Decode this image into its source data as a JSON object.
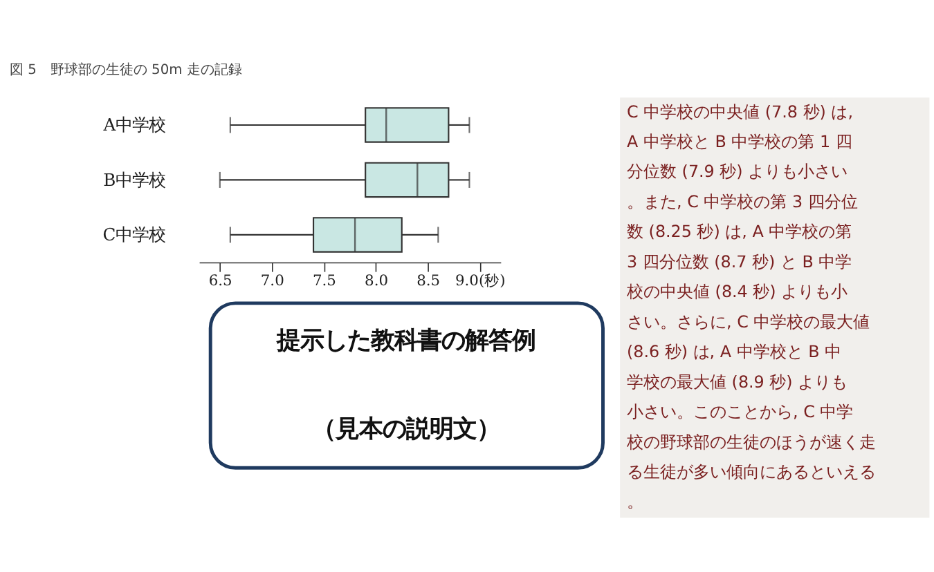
{
  "chart_data": {
    "type": "box",
    "title": "図 5　野球部の生徒の 50m 走の記録",
    "orientation": "horizontal",
    "categories": [
      "A中学校",
      "B中学校",
      "C中学校"
    ],
    "color": "#c9e7e3",
    "boxes": [
      {
        "low": 6.6,
        "q1": 7.9,
        "median": 8.1,
        "q3": 8.7,
        "high": 8.9
      },
      {
        "low": 6.5,
        "q1": 7.9,
        "median": 8.4,
        "q3": 8.7,
        "high": 8.9
      },
      {
        "low": 6.6,
        "q1": 7.4,
        "median": 7.8,
        "q3": 8.25,
        "high": 8.6
      }
    ],
    "xlim": [
      6.3,
      9.2
    ],
    "xticks": [
      {
        "value": 6.5,
        "label": "6.5"
      },
      {
        "value": 7.0,
        "label": "7.0"
      },
      {
        "value": 7.5,
        "label": "7.5"
      },
      {
        "value": 8.0,
        "label": "8.0"
      },
      {
        "value": 8.5,
        "label": "8.5"
      },
      {
        "value": 9.0,
        "label": "9.0(秒)"
      }
    ],
    "annotations": [
      "提示した教科書の解答例（見本の説明文）",
      "C 中学校の中央値 (7.8 秒) は, A 中学校と B 中学校の第 1 四分位数 (7.9 秒) よりも小さい。また, C 中学校の第 3 四分位数 (8.25 秒) は, A 中学校の第 3 四分位数 (8.7 秒) と B 中学校の中央値 (8.4 秒) よりも小さい。さらに, C 中学校の最大値 (8.6 秒) は, A 中学校と B 中学校の最大値 (8.9 秒) よりも小さい。このことから, C 中学校の野球部の生徒のほうが速く走る生徒が多い傾向にあるといえる。"
    ]
  }
}
